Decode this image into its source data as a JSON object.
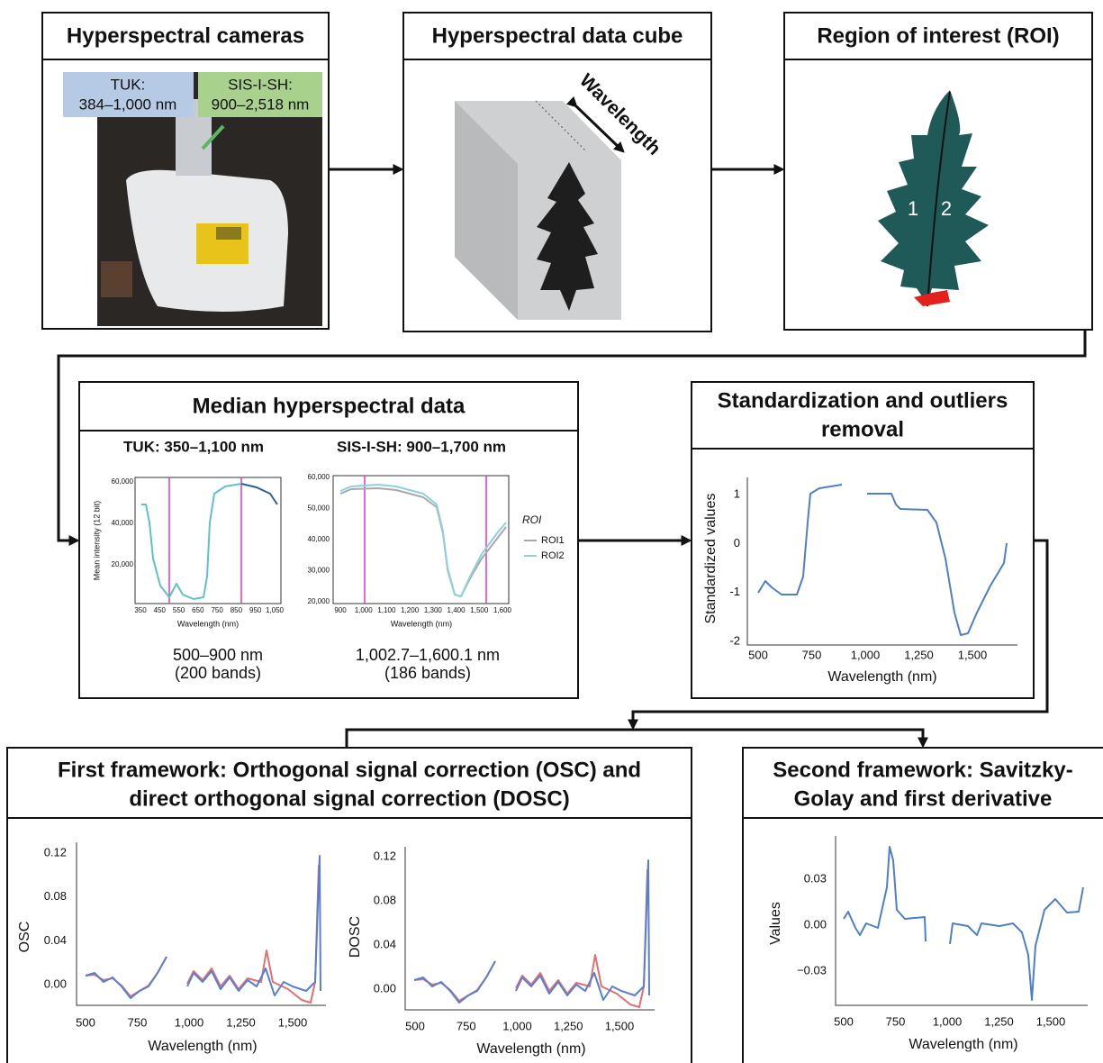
{
  "panels": [
    {
      "title": "Hyperspectral cameras",
      "callouts": [
        {
          "name": "TUK:",
          "range": "384–1,000 nm"
        },
        {
          "name": "SIS-I-SH:",
          "range": "900–2,518 nm"
        }
      ]
    },
    {
      "title": "Hyperspectral data cube",
      "annotation": "Wavelength"
    },
    {
      "title": "Region of interest (ROI)",
      "regions": [
        "1",
        "2"
      ]
    },
    {
      "title": "Median hyperspectral data",
      "plots": [
        {
          "subtitle": "TUK: 350–1,100 nm",
          "ylabel": "Mean intensity (12 bit)",
          "xlabel": "Wavelength (nm)",
          "yticks": [
            "60,000",
            "40,000",
            "20,000"
          ],
          "xticks": [
            "350",
            "450",
            "550",
            "650",
            "750",
            "850",
            "950",
            "1,050"
          ],
          "range": "500–900 nm",
          "bands": "(200 bands)"
        },
        {
          "subtitle": "SIS-I-SH: 900–1,700 nm",
          "ylabel": "",
          "xlabel": "Wavelength (nm)",
          "yticks": [
            "60,000",
            "50,000",
            "40,000",
            "30,000",
            "20,000"
          ],
          "xticks": [
            "900",
            "1,000",
            "1,100",
            "1,200",
            "1,300",
            "1,400",
            "1,500",
            "1,600"
          ],
          "range": "1,002.7–1,600.1 nm",
          "bands": "(186 bands)"
        }
      ],
      "legend": {
        "title": "ROI",
        "entries": [
          "ROI1",
          "ROI2"
        ]
      }
    },
    {
      "title": [
        "Standardization and outliers",
        "removal"
      ],
      "plot": {
        "ylabel": "Standardized values",
        "xlabel": "Wavelength (nm)",
        "yticks": [
          "1",
          "0",
          "-1",
          "-2"
        ],
        "xticks": [
          "500",
          "750",
          "1,000",
          "1,250",
          "1,500"
        ]
      }
    },
    {
      "title": [
        "First framework: Orthogonal signal correction (OSC) and",
        "direct orthogonal signal correction (DOSC)"
      ],
      "plots": [
        {
          "ylabel": "OSC",
          "xlabel": "Wavelength (nm)",
          "yticks": [
            "0.12",
            "0.08",
            "0.04",
            "0.00"
          ],
          "xticks": [
            "500",
            "750",
            "1,000",
            "1,250",
            "1,500"
          ]
        },
        {
          "ylabel": "DOSC",
          "xlabel": "Wavelength (nm)",
          "yticks": [
            "0.12",
            "0.08",
            "0.04",
            "0.00"
          ],
          "xticks": [
            "500",
            "750",
            "1,000",
            "1,250",
            "1,500"
          ]
        }
      ]
    },
    {
      "title": [
        "Second framework: Savitzky-",
        "Golay and first derivative"
      ],
      "plot": {
        "ylabel": "Values",
        "xlabel": "Wavelength (nm)",
        "yticks": [
          "0.03",
          "0.00",
          "−0.03"
        ],
        "xticks": [
          "500",
          "750",
          "1,000",
          "1,250",
          "1,500"
        ]
      }
    }
  ]
}
